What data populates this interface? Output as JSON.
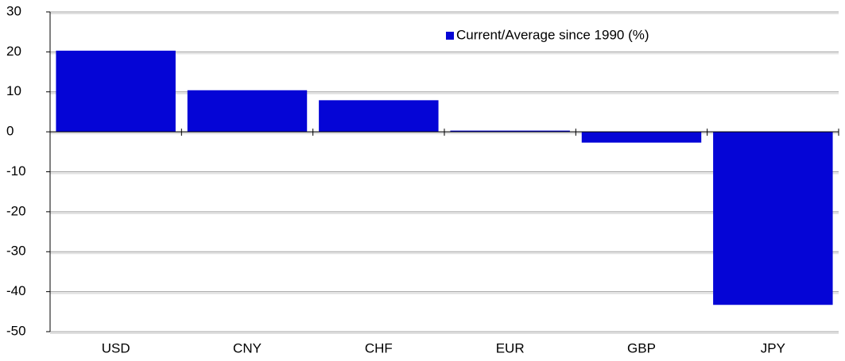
{
  "chart_data": {
    "type": "bar",
    "categories": [
      "USD",
      "CNY",
      "CHF",
      "EUR",
      "GBP",
      "JPY"
    ],
    "series": [
      {
        "name": "Current/Average since 1990 (%)",
        "color": "#0505d6",
        "values": [
          20.3,
          10.4,
          7.9,
          0.3,
          -2.7,
          -43.3
        ]
      }
    ],
    "ylim": [
      -50,
      30
    ],
    "yticks": [
      -50,
      -40,
      -30,
      -20,
      -10,
      0,
      10,
      20,
      30
    ],
    "grid": true,
    "legend": "top-right"
  }
}
